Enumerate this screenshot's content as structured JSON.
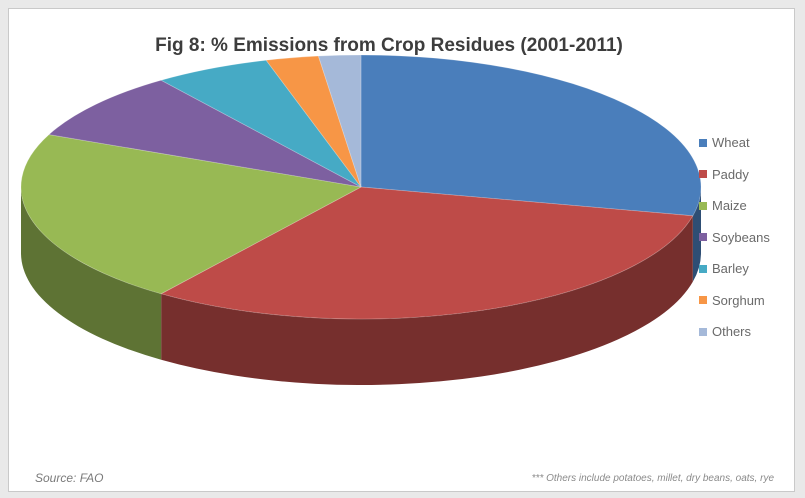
{
  "chart_data": {
    "type": "pie",
    "title": "Fig 8: % Emissions from Crop Residues (2001-2011)",
    "categories": [
      "Wheat",
      "Paddy",
      "Maize",
      "Soybeans",
      "Barley",
      "Sorghum",
      "Others"
    ],
    "values": [
      28.5,
      31.5,
      21.5,
      8.5,
      5.5,
      2.5,
      2.0
    ],
    "colors": [
      "#4a7ebb",
      "#be4b48",
      "#98b954",
      "#7d60a0",
      "#46aac5",
      "#f79646",
      "#a5b9d9"
    ],
    "legend_position": "right",
    "exploded": false,
    "three_d": true
  },
  "footer": {
    "source": "Source: FAO",
    "note": "*** Others include potatoes, millet, dry beans, oats, rye"
  }
}
